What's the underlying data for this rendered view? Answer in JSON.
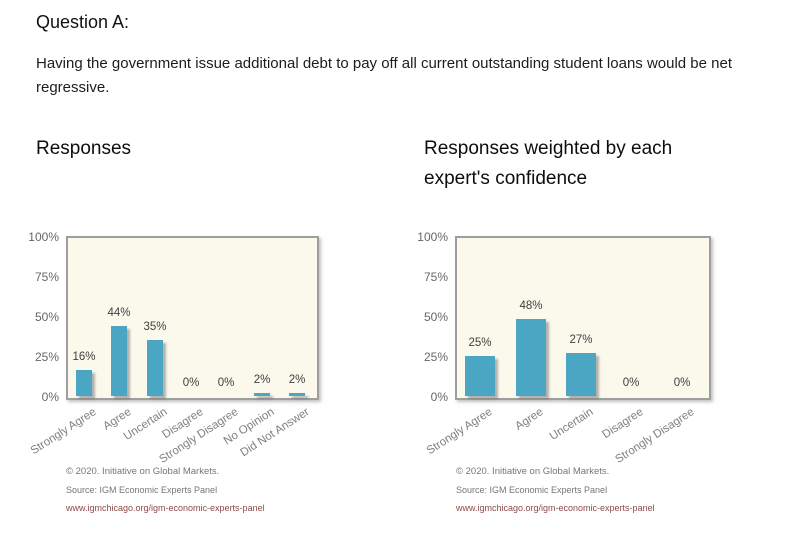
{
  "page": {
    "question_label": "Question A:",
    "question_text": "Having the government issue additional debt to pay off all current outstanding student loans would be net regressive."
  },
  "colors": {
    "bar": "#4BA6C4",
    "plot_background": "#FBF8EC",
    "plot_border": "#9E9E9E",
    "axis_tick_text": "#666666",
    "category_text": "#7f7f7f",
    "data_label_text": "#3f3f3f",
    "url_text": "#8E4A49"
  },
  "chart_data": [
    {
      "type": "bar",
      "title": "Responses",
      "categories": [
        "Strongly Agree",
        "Agree",
        "Uncertain",
        "Disagree",
        "Strongly Disagree",
        "No Opinion",
        "Did Not Answer"
      ],
      "values": [
        16,
        44,
        35,
        0,
        0,
        2,
        2
      ],
      "value_labels": [
        "16%",
        "44%",
        "35%",
        "0%",
        "0%",
        "2%",
        "2%"
      ],
      "ylim": [
        0,
        100
      ],
      "yticks": [
        0,
        25,
        50,
        75,
        100
      ],
      "ytick_labels": [
        "0%",
        "25%",
        "50%",
        "75%",
        "100%"
      ],
      "grid": false,
      "legend": "none"
    },
    {
      "type": "bar",
      "title": "Responses weighted by each expert's confidence",
      "categories": [
        "Strongly Agree",
        "Agree",
        "Uncertain",
        "Disagree",
        "Strongly Disagree"
      ],
      "values": [
        25,
        48,
        27,
        0,
        0
      ],
      "value_labels": [
        "25%",
        "48%",
        "27%",
        "0%",
        "0%"
      ],
      "ylim": [
        0,
        100
      ],
      "yticks": [
        0,
        25,
        50,
        75,
        100
      ],
      "ytick_labels": [
        "0%",
        "25%",
        "50%",
        "75%",
        "100%"
      ],
      "grid": false,
      "legend": "none"
    }
  ],
  "footer": {
    "copyright": "© 2020. Initiative on Global Markets.",
    "source": "Source: IGM Economic Experts Panel",
    "url": "www.igmchicago.org/igm-economic-experts-panel"
  }
}
